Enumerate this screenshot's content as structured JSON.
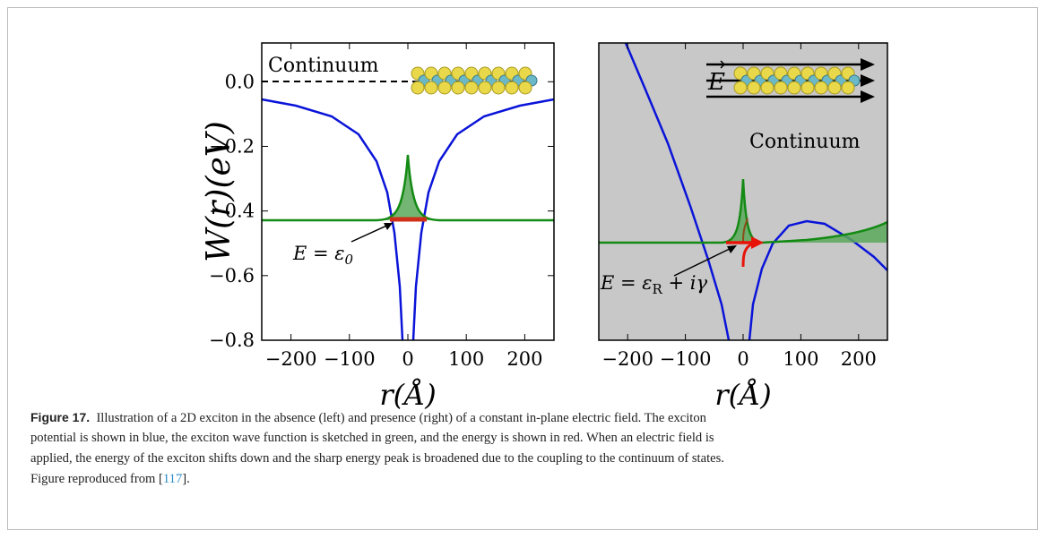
{
  "figure": {
    "panels": [
      {
        "label": "Continuum",
        "ylabel": "W(r)(eV)",
        "xlabel": "r(Å)",
        "xlim": [
          -250,
          250
        ],
        "ylim": [
          -0.8,
          0.12
        ],
        "xticks": [
          {
            "value": -200,
            "label": "−200"
          },
          {
            "value": -100,
            "label": "−100"
          },
          0,
          100,
          200
        ],
        "yticks": [
          {
            "value": 0,
            "label": "0.0"
          },
          {
            "value": -0.2,
            "label": "−0.2"
          },
          {
            "value": -0.4,
            "label": "−0.4"
          },
          {
            "value": -0.6,
            "label": "−0.6"
          },
          {
            "value": -0.8,
            "label": "−0.8"
          }
        ],
        "annotation": {
          "main": "E = ε",
          "sub": "0"
        }
      },
      {
        "label": "Continuum",
        "field": "E",
        "xlabel": "r(Å)",
        "xlim": [
          -250,
          250
        ],
        "ylim": [
          -0.8,
          0.12
        ],
        "xticks": [
          {
            "value": -200,
            "label": "−200"
          },
          {
            "value": -100,
            "label": "−100"
          },
          0,
          100,
          200
        ],
        "annotation": {
          "main": "E = ε",
          "sub": "R",
          "tail": " + iγ"
        }
      }
    ]
  },
  "caption": {
    "label": "Figure 17.",
    "lines": [
      "Illustration of a 2D exciton in the absence (left) and presence (right) of a constant in-plane electric field. The exciton",
      "potential is shown in blue, the exciton wave function is sketched in green, and the energy is shown in red. When an electric field is",
      "applied, the energy of the exciton shifts down and the sharp energy peak is broadened due to the coupling to the continuum of states."
    ],
    "source_prefix": "Figure reproduced from [",
    "ref": "117",
    "source_suffix": "]."
  }
}
